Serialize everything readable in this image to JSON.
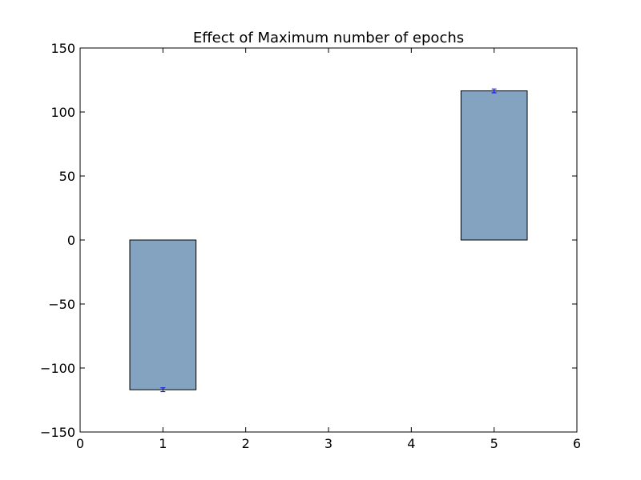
{
  "chart_data": {
    "type": "bar",
    "title": "Effect of Maximum number of epochs",
    "xlabel": "",
    "ylabel": "",
    "xlim": [
      0,
      6
    ],
    "ylim": [
      -150,
      150
    ],
    "xticks": [
      "0",
      "1",
      "2",
      "3",
      "4",
      "5",
      "6"
    ],
    "yticks": [
      "150",
      "100",
      "50",
      "0",
      "−50",
      "−100",
      "−150"
    ],
    "grid": false,
    "bar_width": 0.8,
    "bar_color": "#83a3c0",
    "error_color": "#0000ff",
    "bars": [
      {
        "x": 1,
        "value": -117,
        "error": 1.5
      },
      {
        "x": 5,
        "value": 116.5,
        "error": 1.5
      }
    ]
  }
}
